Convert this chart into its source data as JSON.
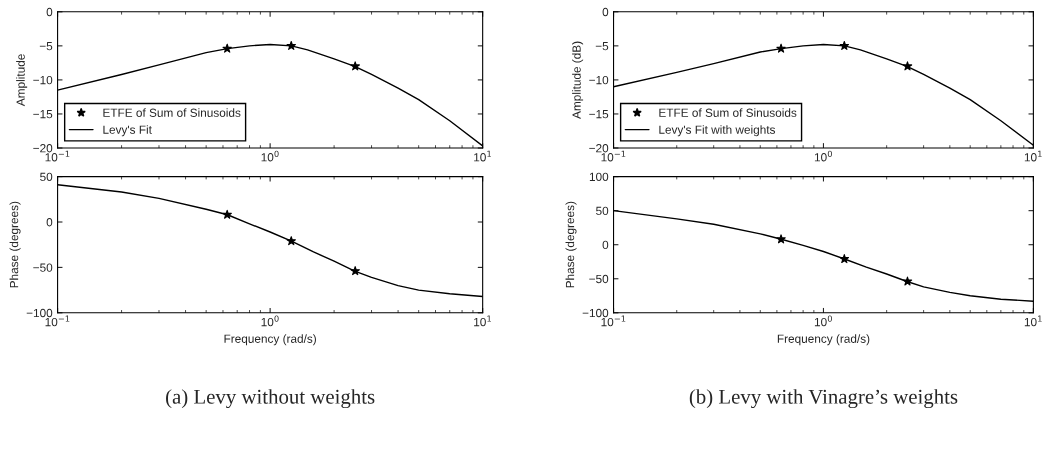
{
  "chart_data": [
    {
      "type": "line",
      "ylabel": "Amplitude",
      "log": "x",
      "grid": false,
      "legend": "bottom left",
      "xlim": [
        0.1,
        10
      ],
      "xticks": [
        {
          "value": 0.1,
          "label": "10$^{−1}$"
        },
        {
          "value": 1,
          "label": "10$^{0}$"
        },
        {
          "value": 10,
          "label": "10$^{1}$"
        }
      ],
      "ylim": [
        -20,
        0
      ],
      "yticks": [
        {
          "value": -20,
          "label": "−20"
        },
        {
          "value": -15,
          "label": "−15"
        },
        {
          "value": -10,
          "label": "−10"
        },
        {
          "value": -5,
          "label": "−5"
        },
        0
      ],
      "series": [
        {
          "name": "ETFE of Sum of Sinusoids",
          "type": "scatter",
          "marker": "star",
          "color": "#000000",
          "x": [
            0.628,
            1.257,
            2.513
          ],
          "values": [
            -5.4,
            -5.0,
            -8.0
          ]
        },
        {
          "name": "Levy's Fit",
          "color": "#000000",
          "x": [
            0.1,
            0.2,
            0.3,
            0.5,
            0.63,
            0.8,
            1.0,
            1.26,
            1.5,
            2.0,
            2.5,
            3,
            4,
            5,
            7,
            10
          ],
          "values": [
            -11.5,
            -9.2,
            -7.8,
            -6.0,
            -5.4,
            -5.0,
            -4.8,
            -5.0,
            -5.6,
            -6.9,
            -8.0,
            -9.2,
            -11.2,
            -12.9,
            -16.0,
            -19.7
          ]
        }
      ]
    },
    {
      "type": "line",
      "ylabel": "Phase (degrees)",
      "xlabel": "Frequency (rad/s)",
      "log": "x",
      "grid": false,
      "xlim": [
        0.1,
        10
      ],
      "xticks": [
        {
          "value": 0.1,
          "label": "10$^{−1}$"
        },
        {
          "value": 1,
          "label": "10$^{0}$"
        },
        {
          "value": 10,
          "label": "10$^{1}$"
        }
      ],
      "ylim": [
        -100,
        50
      ],
      "yticks": [
        {
          "value": -100,
          "label": "−100"
        },
        {
          "value": -50,
          "label": "−50"
        },
        0,
        50
      ],
      "annotations": [
        "(a) Levy without weights"
      ],
      "series": [
        {
          "type": "scatter",
          "marker": "star",
          "color": "#000000",
          "x": [
            0.628,
            1.257,
            2.513
          ],
          "values": [
            8,
            -21,
            -54
          ]
        },
        {
          "color": "#000000",
          "x": [
            0.1,
            0.2,
            0.3,
            0.5,
            0.63,
            0.8,
            1.0,
            1.26,
            1.6,
            2.0,
            2.5,
            3,
            4,
            5,
            7,
            10
          ],
          "values": [
            41,
            33,
            26,
            14,
            8,
            -2,
            -11,
            -21,
            -33,
            -43,
            -54,
            -61,
            -70,
            -75,
            -79,
            -82
          ]
        }
      ]
    },
    {
      "type": "line",
      "ylabel": "Amplitude (dB)",
      "log": "x",
      "grid": false,
      "legend": "bottom left",
      "xlim": [
        0.1,
        10
      ],
      "xticks": [
        {
          "value": 0.1,
          "label": "10$^{−1}$"
        },
        {
          "value": 1,
          "label": "10$^{0}$"
        },
        {
          "value": 10,
          "label": "10$^{1}$"
        }
      ],
      "ylim": [
        -20,
        0
      ],
      "yticks": [
        {
          "value": -20,
          "label": "−20"
        },
        {
          "value": -15,
          "label": "−15"
        },
        {
          "value": -10,
          "label": "−10"
        },
        {
          "value": -5,
          "label": "−5"
        },
        0
      ],
      "series": [
        {
          "name": "ETFE of Sum of Sinusoids",
          "type": "scatter",
          "marker": "star",
          "color": "#000000",
          "x": [
            0.628,
            1.257,
            2.513
          ],
          "values": [
            -5.4,
            -5.0,
            -8.0
          ]
        },
        {
          "name": "Levy's Fit with weights",
          "color": "#000000",
          "x": [
            0.1,
            0.2,
            0.3,
            0.5,
            0.63,
            0.8,
            1.0,
            1.26,
            1.5,
            2.0,
            2.5,
            3,
            4,
            5,
            7,
            10
          ],
          "values": [
            -11.0,
            -8.9,
            -7.6,
            -5.9,
            -5.4,
            -5.0,
            -4.8,
            -5.0,
            -5.6,
            -6.9,
            -8.0,
            -9.2,
            -11.2,
            -12.9,
            -16.0,
            -19.6
          ]
        }
      ]
    },
    {
      "type": "line",
      "ylabel": "Phase (degrees)",
      "xlabel": "Frequency (rad/s)",
      "log": "x",
      "grid": false,
      "xlim": [
        0.1,
        10
      ],
      "xticks": [
        {
          "value": 0.1,
          "label": "10$^{−1}$"
        },
        {
          "value": 1,
          "label": "10$^{0}$"
        },
        {
          "value": 10,
          "label": "10$^{1}$"
        }
      ],
      "ylim": [
        -100,
        100
      ],
      "yticks": [
        {
          "value": -100,
          "label": "−100"
        },
        {
          "value": -50,
          "label": "−50"
        },
        0,
        50,
        100
      ],
      "annotations": [
        "(b) Levy with Vinagre’s weights"
      ],
      "series": [
        {
          "type": "scatter",
          "marker": "star",
          "color": "#000000",
          "x": [
            0.628,
            1.257,
            2.513
          ],
          "values": [
            8,
            -21,
            -54
          ]
        },
        {
          "color": "#000000",
          "x": [
            0.1,
            0.2,
            0.3,
            0.5,
            0.63,
            0.8,
            1.0,
            1.26,
            1.6,
            2.0,
            2.5,
            3,
            4,
            5,
            7,
            10
          ],
          "values": [
            50,
            38,
            30,
            16,
            8,
            -1,
            -10,
            -21,
            -33,
            -43,
            -54,
            -62,
            -70,
            -75,
            -80,
            -83
          ]
        }
      ]
    }
  ]
}
